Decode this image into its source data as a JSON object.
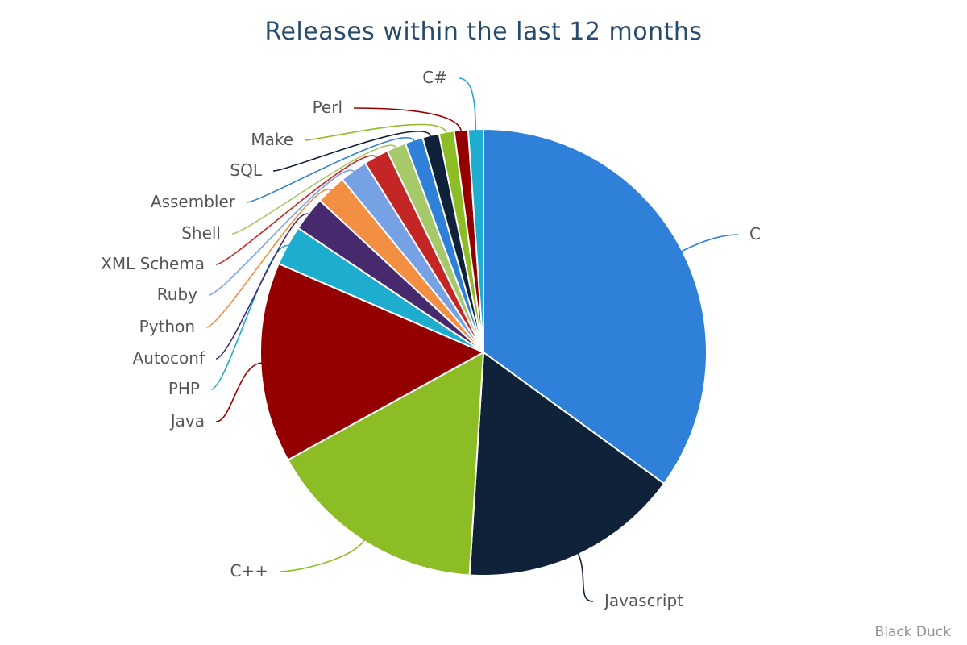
{
  "chart_data": {
    "type": "pie",
    "title": "Releases within the last 12 months",
    "slices": [
      {
        "label": "C",
        "value": 35.0,
        "color": "#2f80d8"
      },
      {
        "label": "Javascript",
        "value": 16.0,
        "color": "#0f223a"
      },
      {
        "label": "C++",
        "value": 16.0,
        "color": "#8dbd24"
      },
      {
        "label": "Java",
        "value": 14.5,
        "color": "#940000"
      },
      {
        "label": "PHP",
        "value": 2.9,
        "color": "#1eaccf"
      },
      {
        "label": "Autoconf",
        "value": 2.5,
        "color": "#472a6d"
      },
      {
        "label": "Python",
        "value": 2.2,
        "color": "#f28f43"
      },
      {
        "label": "Ruby",
        "value": 2.0,
        "color": "#77a1e5"
      },
      {
        "label": "XML Schema",
        "value": 1.8,
        "color": "#c42525"
      },
      {
        "label": "Shell",
        "value": 1.4,
        "color": "#a6c96a"
      },
      {
        "label": "Assembler",
        "value": 1.3,
        "color": "#2f80d8"
      },
      {
        "label": "SQL",
        "value": 1.2,
        "color": "#0f223a"
      },
      {
        "label": "Make",
        "value": 1.1,
        "color": "#8dbd24"
      },
      {
        "label": "Perl",
        "value": 1.0,
        "color": "#940000"
      },
      {
        "label": "C#",
        "value": 1.1,
        "color": "#1eaccf"
      }
    ]
  },
  "credit": "Black Duck"
}
